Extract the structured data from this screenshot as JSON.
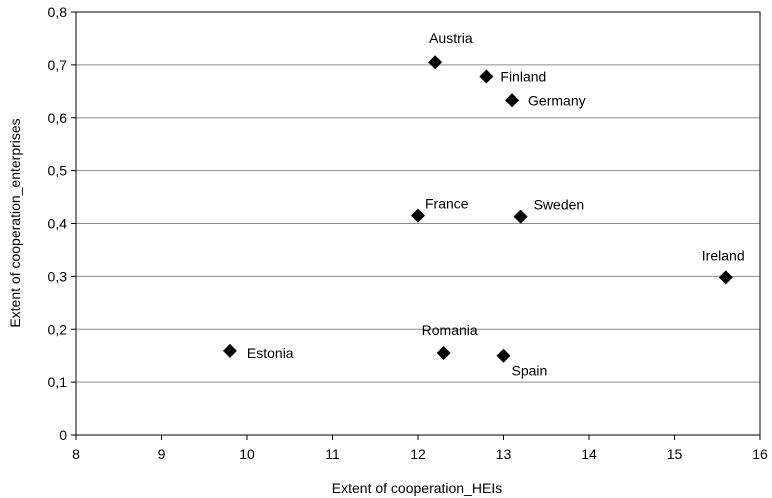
{
  "chart_data": {
    "type": "scatter",
    "title": "",
    "xlabel": "Extent of cooperation_HEIs",
    "ylabel": "Extent of cooperation_enterprises",
    "xlim": [
      8,
      16
    ],
    "ylim": [
      0,
      0.8
    ],
    "x_ticks": [
      8,
      9,
      10,
      11,
      12,
      13,
      14,
      15,
      16
    ],
    "y_ticks": [
      "0",
      "0,1",
      "0,2",
      "0,3",
      "0,4",
      "0,5",
      "0,6",
      "0,7",
      "0,8"
    ],
    "grid": "horizontal",
    "marker": "diamond",
    "marker_color": "#000000",
    "points": [
      {
        "label": "Austria",
        "x": 12.2,
        "y": 0.705
      },
      {
        "label": "Finland",
        "x": 12.8,
        "y": 0.678
      },
      {
        "label": "Germany",
        "x": 13.1,
        "y": 0.633
      },
      {
        "label": "France",
        "x": 12.0,
        "y": 0.415
      },
      {
        "label": "Sweden",
        "x": 13.2,
        "y": 0.413
      },
      {
        "label": "Ireland",
        "x": 15.6,
        "y": 0.298
      },
      {
        "label": "Estonia",
        "x": 9.8,
        "y": 0.159
      },
      {
        "label": "Romania",
        "x": 12.3,
        "y": 0.155
      },
      {
        "label": "Spain",
        "x": 13.0,
        "y": 0.15
      }
    ]
  }
}
